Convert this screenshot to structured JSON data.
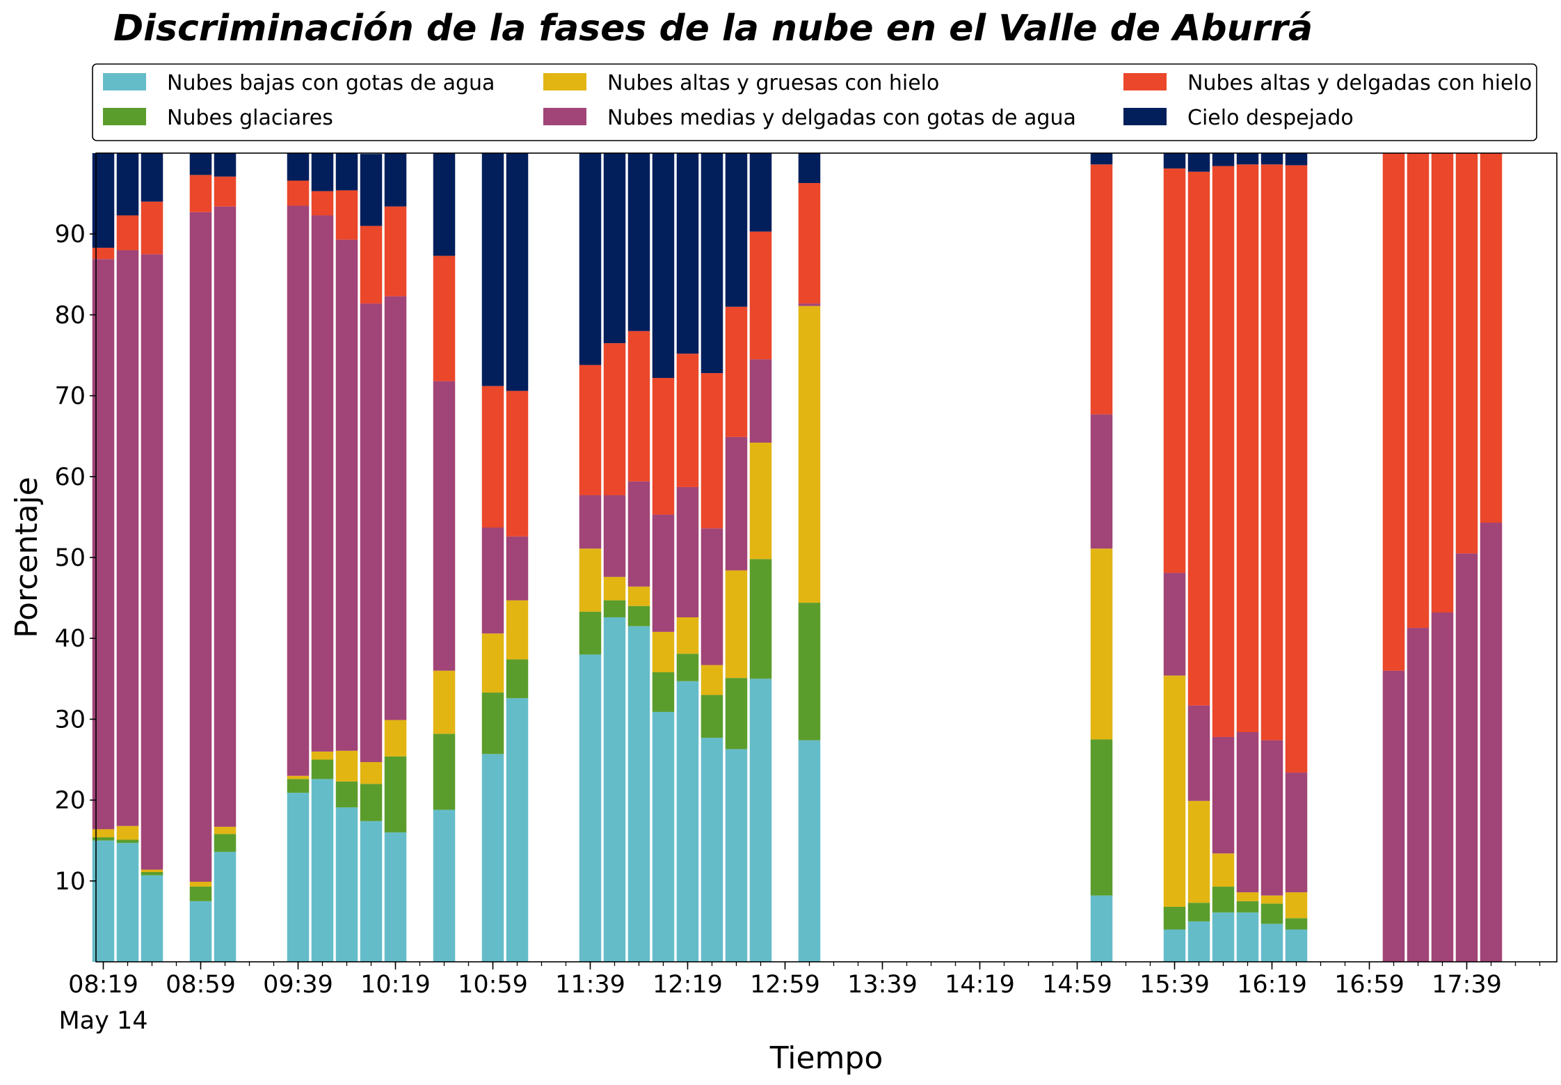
{
  "colors": {
    "Nubes bajas con gotas de agua": "#65bcc9",
    "Nubes glaciares": "#5b9d2c",
    "Nubes altas y gruesas con hielo": "#e2b513",
    "Nubes medias y delgadas con gotas de agua": "#a14477",
    "Nubes altas y delgadas con hielo": "#eb472a",
    "Cielo despejado": "#021f5c"
  },
  "chart_data": {
    "type": "bar",
    "stacked": true,
    "title": "Discriminación de la fases de la nube en el Valle de Aburrá",
    "xlabel": "Tiempo",
    "ylabel": "Porcentaje",
    "ylim": [
      0,
      100
    ],
    "yticks": [
      10,
      20,
      30,
      40,
      50,
      60,
      70,
      80,
      90
    ],
    "xlim_minutes_since_midnight": [
      496,
      1096
    ],
    "xticks": [
      {
        "minute": 499,
        "label": "08:19",
        "sublabel": "May 14"
      },
      {
        "minute": 539,
        "label": "08:59"
      },
      {
        "minute": 579,
        "label": "09:39"
      },
      {
        "minute": 619,
        "label": "10:19"
      },
      {
        "minute": 659,
        "label": "10:59"
      },
      {
        "minute": 699,
        "label": "11:39"
      },
      {
        "minute": 739,
        "label": "12:19"
      },
      {
        "minute": 779,
        "label": "12:59"
      },
      {
        "minute": 819,
        "label": "13:39"
      },
      {
        "minute": 859,
        "label": "14:19"
      },
      {
        "minute": 899,
        "label": "14:59"
      },
      {
        "minute": 939,
        "label": "15:39"
      },
      {
        "minute": 979,
        "label": "16:19"
      },
      {
        "minute": 1019,
        "label": "16:59"
      },
      {
        "minute": 1059,
        "label": "17:39"
      }
    ],
    "minor_tick_step_minutes": 10,
    "legend_position": "top (outside axes, 3 columns)",
    "bar_width_minutes": 9,
    "times": [
      "08:19",
      "08:29",
      "08:39",
      "08:59",
      "09:09",
      "09:39",
      "09:49",
      "09:59",
      "10:09",
      "10:19",
      "10:39",
      "10:59",
      "11:09",
      "11:39",
      "11:49",
      "11:59",
      "12:09",
      "12:19",
      "12:29",
      "12:39",
      "12:49",
      "13:09",
      "15:09",
      "15:39",
      "15:49",
      "15:59",
      "16:09",
      "16:19",
      "16:29",
      "17:09",
      "17:19",
      "17:29",
      "17:39",
      "17:49"
    ],
    "series": [
      {
        "name": "Nubes bajas con gotas de agua",
        "values": [
          15.0,
          14.7,
          10.7,
          7.5,
          13.6,
          20.9,
          22.6,
          19.1,
          17.4,
          16.0,
          18.8,
          25.7,
          32.6,
          38.0,
          42.6,
          41.5,
          30.9,
          34.7,
          27.7,
          26.3,
          35.0,
          27.4,
          8.2,
          4.0,
          5.0,
          6.1,
          6.1,
          4.7,
          4.0,
          0,
          0,
          0,
          0,
          0
        ]
      },
      {
        "name": "Nubes glaciares",
        "values": [
          0.4,
          0.4,
          0.4,
          1.8,
          2.2,
          1.7,
          2.4,
          3.2,
          4.6,
          9.4,
          9.4,
          7.6,
          4.8,
          5.3,
          2.1,
          2.5,
          4.9,
          3.4,
          5.3,
          8.8,
          14.8,
          17.0,
          19.3,
          2.8,
          2.3,
          3.2,
          1.4,
          2.5,
          1.4,
          0,
          0,
          0,
          0,
          0
        ]
      },
      {
        "name": "Nubes altas y gruesas con hielo",
        "values": [
          1.0,
          1.7,
          0.3,
          0.6,
          0.9,
          0.4,
          1.0,
          3.8,
          2.7,
          4.5,
          7.8,
          7.3,
          7.3,
          7.8,
          2.9,
          2.4,
          5.0,
          4.5,
          3.7,
          13.3,
          14.4,
          36.7,
          23.6,
          28.6,
          12.6,
          4.1,
          1.1,
          1.0,
          3.2,
          0,
          0,
          0,
          0,
          0
        ]
      },
      {
        "name": "Nubes medias y delgadas con gotas de agua",
        "values": [
          70.5,
          71.2,
          76.1,
          82.8,
          76.7,
          70.5,
          66.3,
          63.2,
          56.7,
          52.4,
          35.8,
          13.1,
          7.9,
          6.6,
          10.1,
          13.0,
          14.5,
          16.1,
          16.9,
          16.5,
          10.3,
          0.3,
          16.6,
          12.7,
          11.8,
          14.4,
          19.8,
          19.2,
          14.8,
          36.0,
          41.3,
          43.2,
          50.5,
          54.3
        ]
      },
      {
        "name": "Nubes altas y delgadas con hielo",
        "values": [
          1.4,
          4.3,
          6.5,
          4.6,
          3.7,
          3.1,
          3.0,
          6.1,
          9.6,
          11.1,
          15.5,
          17.5,
          18.0,
          16.1,
          18.8,
          18.6,
          16.9,
          16.5,
          19.2,
          16.1,
          15.8,
          14.9,
          30.9,
          50.0,
          66.0,
          70.6,
          70.2,
          71.2,
          75.1,
          64.0,
          58.7,
          56.8,
          49.5,
          45.7
        ]
      },
      {
        "name": "Cielo despejado",
        "values": [
          11.7,
          7.7,
          6.0,
          2.7,
          2.9,
          3.4,
          4.7,
          4.6,
          8.9,
          6.6,
          12.7,
          28.8,
          29.4,
          26.2,
          23.5,
          22.0,
          27.8,
          24.8,
          27.2,
          19.0,
          9.7,
          3.7,
          1.4,
          1.9,
          2.3,
          1.6,
          1.4,
          1.4,
          1.5,
          0,
          0,
          0,
          0,
          0
        ]
      }
    ]
  }
}
